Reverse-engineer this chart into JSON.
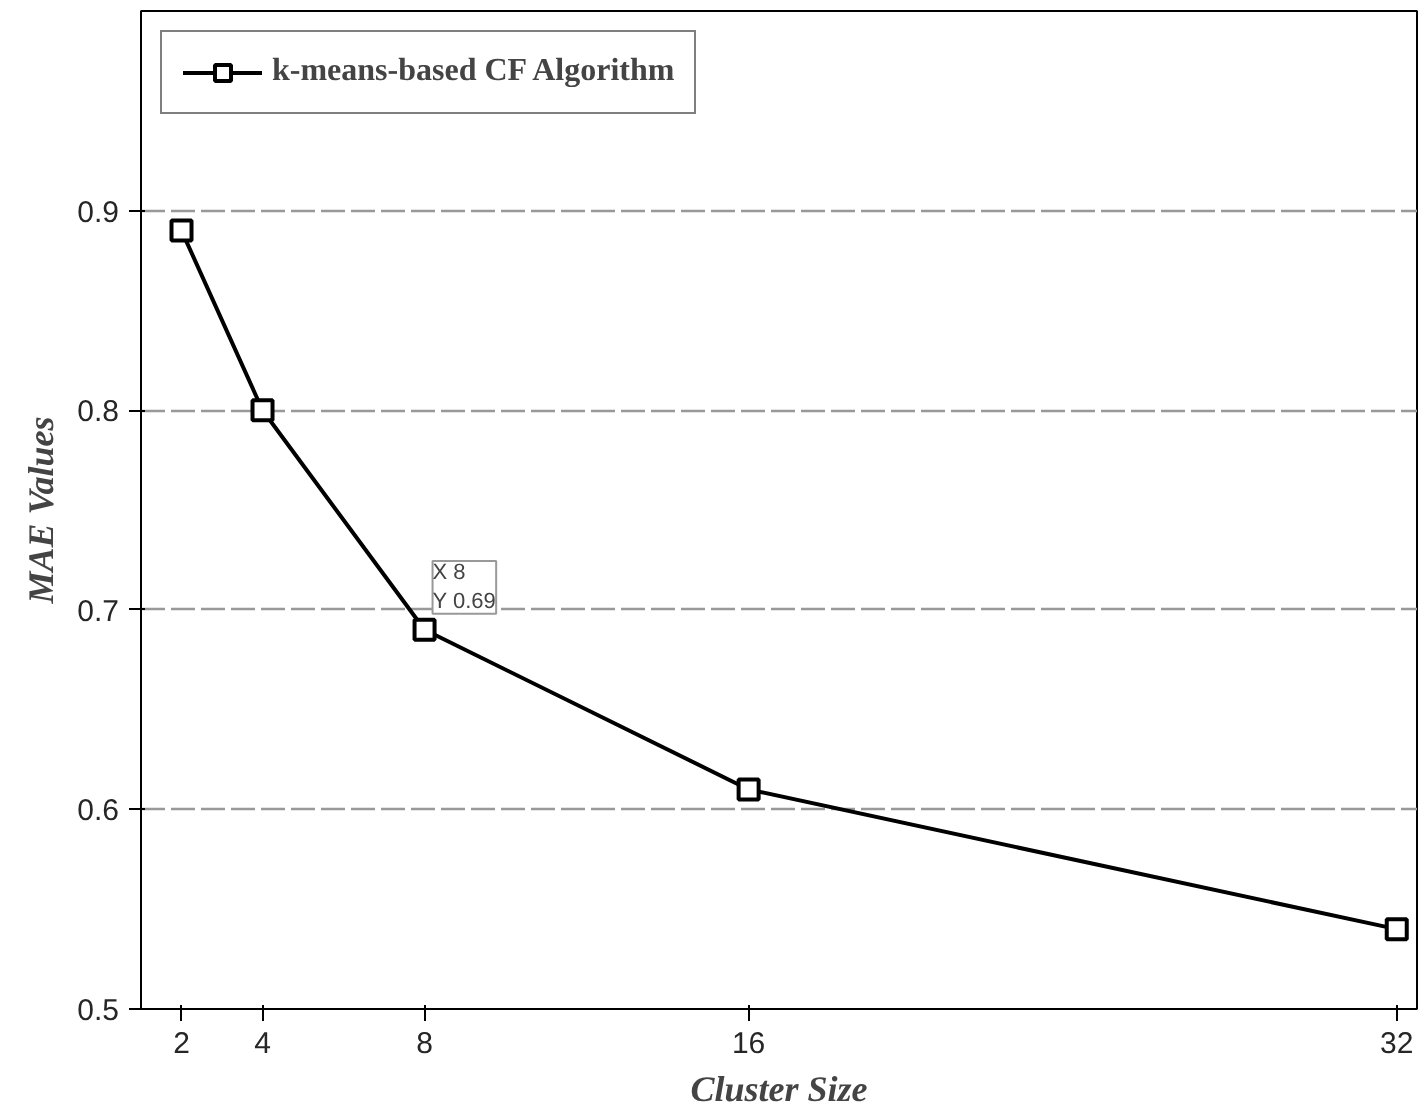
{
  "chart_data": {
    "type": "line",
    "xlabel": "Cluster Size",
    "ylabel": "MAE Values",
    "x": [
      2,
      4,
      8,
      16,
      32
    ],
    "series": [
      {
        "name": "k-means-based CF Algorithm",
        "color": "#000000",
        "values": [
          0.89,
          0.8,
          0.69,
          0.61,
          0.54
        ]
      }
    ],
    "xlim": [
      1,
      32.5
    ],
    "xticks": [
      2,
      4,
      8,
      16,
      32
    ],
    "ylim": [
      0.5,
      1.0
    ],
    "yticks": [
      0.5,
      0.6,
      0.7,
      0.8,
      0.9
    ],
    "grid": "y",
    "legend": "top left",
    "marker": "square",
    "line_style": "solid",
    "annotations": [
      {
        "text": "X 8\nY 0.69",
        "x": 8,
        "y": 0.69
      }
    ]
  }
}
